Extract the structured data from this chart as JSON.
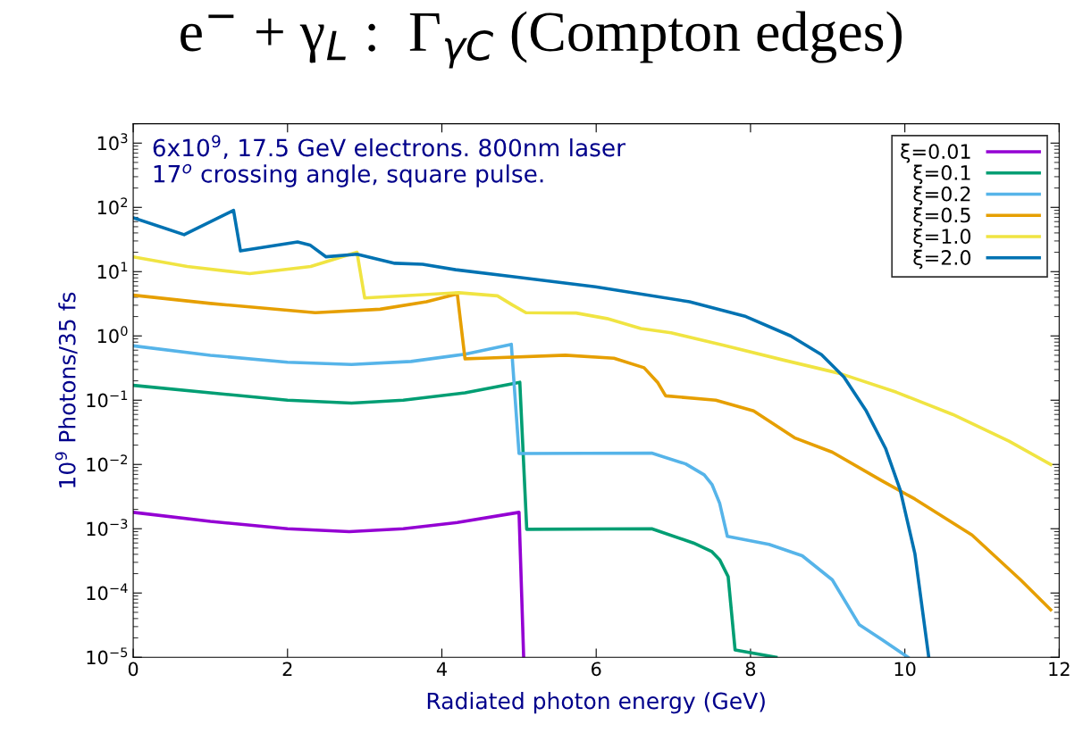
{
  "chart_data": {
    "type": "line",
    "title": "e$^{−}$ + γ$_{L}$ :  Γ$_{γC}$ (Compton edges)",
    "xlabel": "Radiated photon energy (GeV)",
    "ylabel": "10$^{9}$ Photons/35 fs",
    "annotations": [
      "6x10$^{9}$, 17.5 GeV electrons. 800nm laser\n17$^{o}$ crossing angle, square pulse."
    ],
    "log": "y",
    "xlim": [
      0,
      12
    ],
    "ylim": [
      1e-05,
      2000
    ],
    "xticks": [
      0,
      2,
      4,
      6,
      8,
      10,
      12
    ],
    "yticks": [
      {
        "value": 1e-05,
        "label": "10$^{−5}$"
      },
      {
        "value": 0.0001,
        "label": "10$^{−4}$"
      },
      {
        "value": 0.001,
        "label": "10$^{−3}$"
      },
      {
        "value": 0.01,
        "label": "10$^{−2}$"
      },
      {
        "value": 0.1,
        "label": "10$^{−1}$"
      },
      {
        "value": 1,
        "label": "10$^{0}$"
      },
      {
        "value": 10,
        "label": "10$^{1}$"
      },
      {
        "value": 100,
        "label": "10$^{2}$"
      },
      {
        "value": 1000,
        "label": "10$^{3}$"
      }
    ],
    "grid": false,
    "legend": "top right",
    "marker": "none",
    "line_style": "solid",
    "series": [
      {
        "name": "ξ=0.01",
        "color": "#9400d3",
        "x": [
          0,
          1,
          2,
          2.8,
          3.5,
          4.2,
          5.0,
          5.06
        ],
        "values": [
          0.0018,
          0.0013,
          0.001,
          0.0009,
          0.001,
          0.00125,
          0.0018,
          1e-05
        ]
      },
      {
        "name": "ξ=0.1",
        "color": "#009e73",
        "x": [
          0,
          1,
          2,
          2.83,
          3.5,
          4.3,
          5.01,
          5.1,
          6.72,
          7.26,
          7.5,
          7.6,
          7.71,
          7.8,
          8.33
        ],
        "values": [
          0.17,
          0.13,
          0.1,
          0.09,
          0.1,
          0.13,
          0.19,
          0.00098,
          0.001,
          0.0006,
          0.00044,
          0.00033,
          0.00018,
          1.3e-05,
          1e-05
        ]
      },
      {
        "name": "ξ=0.2",
        "color": "#56b4e9",
        "x": [
          0,
          1,
          2,
          2.83,
          3.6,
          4.3,
          4.9,
          5.0,
          6.72,
          7.16,
          7.4,
          7.5,
          7.6,
          7.7,
          8.24,
          8.67,
          9.06,
          9.41,
          9.7,
          10.04
        ],
        "values": [
          0.7,
          0.5,
          0.39,
          0.36,
          0.4,
          0.52,
          0.74,
          0.0148,
          0.015,
          0.0102,
          0.0069,
          0.0049,
          0.0025,
          0.00076,
          0.00057,
          0.00038,
          0.00016,
          3.2e-05,
          1.9e-05,
          1e-05
        ]
      },
      {
        "name": "ξ=0.5",
        "color": "#e69f00",
        "x": [
          0,
          1,
          2.36,
          3.2,
          3.8,
          4.2,
          4.3,
          4.53,
          5.6,
          6.23,
          6.62,
          6.8,
          6.9,
          7.55,
          8.04,
          8.57,
          9.06,
          9.7,
          10.13,
          10.87,
          11.5,
          11.89
        ],
        "values": [
          4.3,
          3.2,
          2.3,
          2.6,
          3.4,
          4.5,
          0.44,
          0.45,
          0.5,
          0.45,
          0.32,
          0.186,
          0.117,
          0.1,
          0.068,
          0.026,
          0.0155,
          0.0056,
          0.0029,
          0.0008,
          0.00016,
          5.5e-05
        ]
      },
      {
        "name": "ξ=1.0",
        "color": "#f0e442",
        "x": [
          0,
          0.7,
          1.51,
          2.3,
          2.9,
          3.0,
          4.22,
          4.72,
          4.91,
          5.09,
          5.74,
          6.14,
          6.58,
          6.97,
          7.64,
          8.43,
          9.16,
          9.89,
          10.62,
          11.35,
          11.89
        ],
        "values": [
          17,
          12,
          9.3,
          12,
          20,
          3.9,
          4.7,
          4.2,
          3.05,
          2.3,
          2.27,
          1.86,
          1.3,
          1.12,
          0.72,
          0.42,
          0.26,
          0.133,
          0.06,
          0.023,
          0.01
        ]
      },
      {
        "name": "ξ=2.0",
        "color": "#0072b2",
        "x": [
          0,
          0.66,
          1.3,
          1.39,
          2.13,
          2.29,
          2.5,
          2.9,
          3.39,
          3.75,
          4.18,
          4.91,
          5.99,
          7.21,
          7.94,
          8.52,
          8.92,
          9.21,
          9.5,
          9.75,
          9.94,
          10.13,
          10.31
        ],
        "values": [
          69,
          37.6,
          90,
          21,
          29,
          26,
          17,
          18.7,
          13.5,
          13,
          10.7,
          8.4,
          5.8,
          3.4,
          2.0,
          1.0,
          0.51,
          0.23,
          0.068,
          0.0178,
          0.004,
          0.00041,
          1e-05
        ]
      }
    ]
  }
}
